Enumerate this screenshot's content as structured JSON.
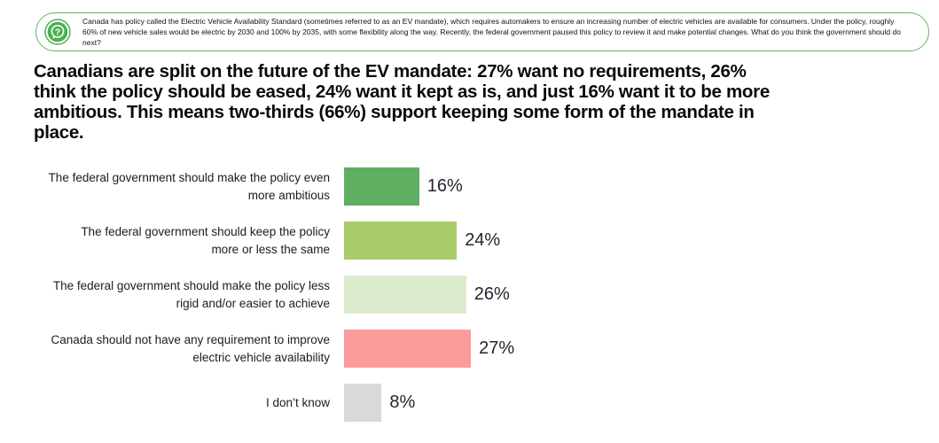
{
  "question_box": {
    "icon": "question-speech-bubble-icon",
    "border_color": "#5cb85c",
    "icon_color": "#4cb050",
    "text": "Canada has policy called the Electric Vehicle Availability Standard (sometimes referred to as an EV mandate), which requires automakers to ensure an increasing number of electric vehicles are available for consumers. Under the policy, roughly 60% of new vehicle sales would be electric by 2030 and 100% by 2035, with some flexibility along the way. Recently, the federal government paused this policy to review it and make potential changes. What do you think the government should do next?"
  },
  "headline": "Canadians are split on the future of the EV mandate: 27% want no requirements, 26%\nthink the policy should be eased, 24% want it kept as is, and just 16% want it to be more\nambitious. This means two-thirds (66%) support keeping some form of the mandate in\nplace.",
  "chart_data": {
    "type": "bar",
    "orientation": "horizontal",
    "axis": "hidden",
    "grid": false,
    "legend": "none",
    "xlim": [
      0,
      100
    ],
    "categories": [
      "The federal government should make the policy even\nmore ambitious",
      "The federal government should keep the policy\nmore or less the same",
      "The federal government should make the policy less\nrigid and/or easier to achieve",
      "Canada should not have any requirement to improve\nelectric vehicle availability",
      "I don’t know"
    ],
    "values": [
      16,
      24,
      26,
      27,
      8
    ],
    "value_labels": [
      "16%",
      "24%",
      "26%",
      "27%",
      "8%"
    ],
    "bar_colors": [
      "#5faf63",
      "#a9cc6b",
      "#ddebcd",
      "#fb9b9b",
      "#d9d9d9"
    ],
    "value_label_color": "#24252f"
  }
}
